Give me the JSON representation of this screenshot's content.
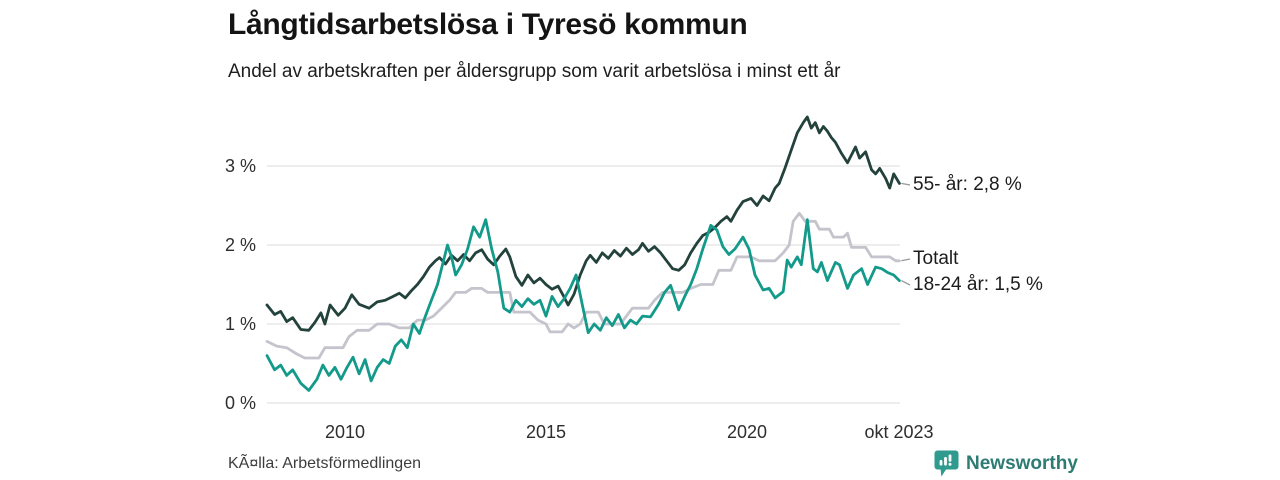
{
  "chart_data": {
    "type": "line",
    "title": "Långtidsarbetslösa i Tyresö kommun",
    "subtitle": "Andel av arbetskraften per åldersgrupp som varit arbetslösa i minst ett år",
    "x_axis": {
      "range": [
        2008.0,
        2023.83
      ],
      "grid": false,
      "ticks": [
        {
          "label": "2010",
          "value": 2010
        },
        {
          "label": "2015",
          "value": 2015
        },
        {
          "label": "2020",
          "value": 2020
        },
        {
          "label": "okt 2023",
          "value": 2023.79
        }
      ]
    },
    "y_axis": {
      "unit": "%",
      "range": [
        0,
        3.65
      ],
      "grid": true,
      "ticks": [
        {
          "label": "0 %",
          "value": 0
        },
        {
          "label": "1 %",
          "value": 1
        },
        {
          "label": "2 %",
          "value": 2
        },
        {
          "label": "3 %",
          "value": 3
        }
      ]
    },
    "legend_position": "end-of-line labels at right",
    "series": [
      {
        "name": "55- år",
        "end_label": "55- år: 2,8 %",
        "last_value": "2,8 %",
        "color": "#23423c",
        "points": [
          [
            2008.06,
            1.24
          ],
          [
            2008.25,
            1.12
          ],
          [
            2008.4,
            1.16
          ],
          [
            2008.55,
            1.03
          ],
          [
            2008.7,
            1.08
          ],
          [
            2008.9,
            0.93
          ],
          [
            2009.1,
            0.92
          ],
          [
            2009.25,
            1.02
          ],
          [
            2009.4,
            1.14
          ],
          [
            2009.5,
            1.0
          ],
          [
            2009.63,
            1.24
          ],
          [
            2009.83,
            1.11
          ],
          [
            2010.0,
            1.2
          ],
          [
            2010.17,
            1.37
          ],
          [
            2010.35,
            1.25
          ],
          [
            2010.6,
            1.2
          ],
          [
            2010.8,
            1.28
          ],
          [
            2011.0,
            1.3
          ],
          [
            2011.2,
            1.35
          ],
          [
            2011.35,
            1.39
          ],
          [
            2011.5,
            1.33
          ],
          [
            2011.65,
            1.42
          ],
          [
            2011.8,
            1.5
          ],
          [
            2011.95,
            1.6
          ],
          [
            2012.1,
            1.72
          ],
          [
            2012.25,
            1.8
          ],
          [
            2012.35,
            1.84
          ],
          [
            2012.5,
            1.76
          ],
          [
            2012.65,
            1.87
          ],
          [
            2012.8,
            1.8
          ],
          [
            2012.95,
            1.88
          ],
          [
            2013.1,
            1.8
          ],
          [
            2013.25,
            1.9
          ],
          [
            2013.4,
            1.94
          ],
          [
            2013.55,
            1.82
          ],
          [
            2013.7,
            1.75
          ],
          [
            2013.85,
            1.86
          ],
          [
            2014.0,
            1.95
          ],
          [
            2014.1,
            1.85
          ],
          [
            2014.25,
            1.6
          ],
          [
            2014.4,
            1.49
          ],
          [
            2014.55,
            1.62
          ],
          [
            2014.7,
            1.52
          ],
          [
            2014.85,
            1.58
          ],
          [
            2015.0,
            1.5
          ],
          [
            2015.15,
            1.44
          ],
          [
            2015.3,
            1.48
          ],
          [
            2015.45,
            1.34
          ],
          [
            2015.55,
            1.24
          ],
          [
            2015.7,
            1.38
          ],
          [
            2015.85,
            1.62
          ],
          [
            2016.0,
            1.8
          ],
          [
            2016.1,
            1.87
          ],
          [
            2016.25,
            1.78
          ],
          [
            2016.4,
            1.9
          ],
          [
            2016.55,
            1.83
          ],
          [
            2016.7,
            1.93
          ],
          [
            2016.85,
            1.86
          ],
          [
            2017.0,
            1.96
          ],
          [
            2017.15,
            1.88
          ],
          [
            2017.3,
            1.94
          ],
          [
            2017.4,
            2.02
          ],
          [
            2017.55,
            1.92
          ],
          [
            2017.7,
            1.98
          ],
          [
            2017.85,
            1.9
          ],
          [
            2018.0,
            1.8
          ],
          [
            2018.15,
            1.7
          ],
          [
            2018.3,
            1.68
          ],
          [
            2018.45,
            1.75
          ],
          [
            2018.6,
            1.9
          ],
          [
            2018.75,
            2.02
          ],
          [
            2018.9,
            2.12
          ],
          [
            2019.05,
            2.16
          ],
          [
            2019.2,
            2.22
          ],
          [
            2019.35,
            2.3
          ],
          [
            2019.5,
            2.36
          ],
          [
            2019.6,
            2.3
          ],
          [
            2019.75,
            2.44
          ],
          [
            2019.9,
            2.55
          ],
          [
            2020.1,
            2.59
          ],
          [
            2020.25,
            2.5
          ],
          [
            2020.4,
            2.62
          ],
          [
            2020.55,
            2.56
          ],
          [
            2020.7,
            2.72
          ],
          [
            2020.8,
            2.78
          ],
          [
            2020.95,
            2.98
          ],
          [
            2021.1,
            3.2
          ],
          [
            2021.25,
            3.42
          ],
          [
            2021.4,
            3.55
          ],
          [
            2021.5,
            3.62
          ],
          [
            2021.6,
            3.48
          ],
          [
            2021.7,
            3.55
          ],
          [
            2021.8,
            3.42
          ],
          [
            2021.9,
            3.5
          ],
          [
            2022.0,
            3.44
          ],
          [
            2022.1,
            3.36
          ],
          [
            2022.2,
            3.3
          ],
          [
            2022.35,
            3.16
          ],
          [
            2022.5,
            3.04
          ],
          [
            2022.6,
            3.14
          ],
          [
            2022.7,
            3.24
          ],
          [
            2022.8,
            3.1
          ],
          [
            2022.95,
            3.18
          ],
          [
            2023.1,
            2.95
          ],
          [
            2023.2,
            2.9
          ],
          [
            2023.3,
            2.97
          ],
          [
            2023.45,
            2.84
          ],
          [
            2023.55,
            2.72
          ],
          [
            2023.65,
            2.9
          ],
          [
            2023.79,
            2.78
          ]
        ]
      },
      {
        "name": "Totalt",
        "end_label": "Totalt",
        "last_value": "1,8 %",
        "color": "#c5c3cc",
        "points": [
          [
            2008.06,
            0.78
          ],
          [
            2008.3,
            0.72
          ],
          [
            2008.55,
            0.7
          ],
          [
            2008.8,
            0.62
          ],
          [
            2009.0,
            0.57
          ],
          [
            2009.35,
            0.57
          ],
          [
            2009.5,
            0.7
          ],
          [
            2009.95,
            0.7
          ],
          [
            2010.1,
            0.84
          ],
          [
            2010.3,
            0.92
          ],
          [
            2010.6,
            0.92
          ],
          [
            2010.8,
            1.0
          ],
          [
            2011.1,
            1.0
          ],
          [
            2011.35,
            0.95
          ],
          [
            2011.6,
            0.95
          ],
          [
            2011.8,
            1.05
          ],
          [
            2012.0,
            1.05
          ],
          [
            2012.2,
            1.1
          ],
          [
            2012.4,
            1.2
          ],
          [
            2012.6,
            1.3
          ],
          [
            2012.75,
            1.4
          ],
          [
            2013.0,
            1.4
          ],
          [
            2013.15,
            1.45
          ],
          [
            2013.4,
            1.45
          ],
          [
            2013.55,
            1.4
          ],
          [
            2014.1,
            1.4
          ],
          [
            2014.2,
            1.15
          ],
          [
            2014.6,
            1.15
          ],
          [
            2014.8,
            1.05
          ],
          [
            2015.0,
            1.0
          ],
          [
            2015.1,
            0.9
          ],
          [
            2015.4,
            0.9
          ],
          [
            2015.55,
            1.0
          ],
          [
            2015.7,
            0.95
          ],
          [
            2015.85,
            1.0
          ],
          [
            2016.0,
            1.15
          ],
          [
            2016.3,
            1.15
          ],
          [
            2016.45,
            1.0
          ],
          [
            2016.85,
            1.0
          ],
          [
            2017.0,
            1.1
          ],
          [
            2017.15,
            1.2
          ],
          [
            2017.55,
            1.2
          ],
          [
            2017.7,
            1.3
          ],
          [
            2017.9,
            1.4
          ],
          [
            2018.4,
            1.4
          ],
          [
            2018.6,
            1.45
          ],
          [
            2018.85,
            1.5
          ],
          [
            2019.15,
            1.5
          ],
          [
            2019.3,
            1.68
          ],
          [
            2019.6,
            1.68
          ],
          [
            2019.75,
            1.85
          ],
          [
            2020.1,
            1.85
          ],
          [
            2020.3,
            1.8
          ],
          [
            2020.7,
            1.8
          ],
          [
            2020.9,
            1.9
          ],
          [
            2021.05,
            2.0
          ],
          [
            2021.15,
            2.3
          ],
          [
            2021.3,
            2.4
          ],
          [
            2021.45,
            2.3
          ],
          [
            2021.7,
            2.3
          ],
          [
            2021.8,
            2.2
          ],
          [
            2022.05,
            2.2
          ],
          [
            2022.15,
            2.1
          ],
          [
            2022.4,
            2.1
          ],
          [
            2022.5,
            2.15
          ],
          [
            2022.6,
            1.97
          ],
          [
            2022.95,
            1.97
          ],
          [
            2023.1,
            1.85
          ],
          [
            2023.55,
            1.85
          ],
          [
            2023.7,
            1.8
          ],
          [
            2023.79,
            1.8
          ]
        ]
      },
      {
        "name": "18-24 år",
        "end_label": "18-24 år: 1,5 %",
        "last_value": "1,5 %",
        "color": "#149a8b",
        "points": [
          [
            2008.06,
            0.6
          ],
          [
            2008.25,
            0.42
          ],
          [
            2008.4,
            0.48
          ],
          [
            2008.55,
            0.35
          ],
          [
            2008.7,
            0.42
          ],
          [
            2008.9,
            0.25
          ],
          [
            2009.1,
            0.16
          ],
          [
            2009.3,
            0.3
          ],
          [
            2009.45,
            0.48
          ],
          [
            2009.6,
            0.35
          ],
          [
            2009.75,
            0.45
          ],
          [
            2009.9,
            0.3
          ],
          [
            2010.05,
            0.45
          ],
          [
            2010.2,
            0.58
          ],
          [
            2010.35,
            0.37
          ],
          [
            2010.5,
            0.55
          ],
          [
            2010.65,
            0.28
          ],
          [
            2010.8,
            0.45
          ],
          [
            2010.95,
            0.55
          ],
          [
            2011.1,
            0.5
          ],
          [
            2011.25,
            0.72
          ],
          [
            2011.4,
            0.8
          ],
          [
            2011.55,
            0.7
          ],
          [
            2011.7,
            1.0
          ],
          [
            2011.85,
            0.88
          ],
          [
            2012.0,
            1.1
          ],
          [
            2012.15,
            1.3
          ],
          [
            2012.3,
            1.5
          ],
          [
            2012.45,
            1.8
          ],
          [
            2012.55,
            2.0
          ],
          [
            2012.65,
            1.85
          ],
          [
            2012.75,
            1.62
          ],
          [
            2012.9,
            1.75
          ],
          [
            2013.05,
            1.95
          ],
          [
            2013.2,
            2.23
          ],
          [
            2013.35,
            2.1
          ],
          [
            2013.5,
            2.32
          ],
          [
            2013.65,
            1.95
          ],
          [
            2013.8,
            1.66
          ],
          [
            2013.95,
            1.2
          ],
          [
            2014.1,
            1.15
          ],
          [
            2014.25,
            1.3
          ],
          [
            2014.4,
            1.22
          ],
          [
            2014.55,
            1.32
          ],
          [
            2014.7,
            1.25
          ],
          [
            2014.85,
            1.3
          ],
          [
            2015.0,
            1.1
          ],
          [
            2015.15,
            1.35
          ],
          [
            2015.3,
            1.22
          ],
          [
            2015.45,
            1.32
          ],
          [
            2015.6,
            1.45
          ],
          [
            2015.75,
            1.62
          ],
          [
            2015.9,
            1.25
          ],
          [
            2016.05,
            0.89
          ],
          [
            2016.2,
            1.0
          ],
          [
            2016.35,
            0.92
          ],
          [
            2016.5,
            1.08
          ],
          [
            2016.65,
            0.98
          ],
          [
            2016.8,
            1.12
          ],
          [
            2016.95,
            0.95
          ],
          [
            2017.1,
            1.05
          ],
          [
            2017.25,
            1.0
          ],
          [
            2017.4,
            1.1
          ],
          [
            2017.6,
            1.09
          ],
          [
            2017.8,
            1.25
          ],
          [
            2017.95,
            1.4
          ],
          [
            2018.1,
            1.49
          ],
          [
            2018.3,
            1.18
          ],
          [
            2018.45,
            1.35
          ],
          [
            2018.6,
            1.5
          ],
          [
            2018.75,
            1.7
          ],
          [
            2018.9,
            1.95
          ],
          [
            2019.1,
            2.25
          ],
          [
            2019.25,
            2.19
          ],
          [
            2019.4,
            1.98
          ],
          [
            2019.55,
            1.88
          ],
          [
            2019.7,
            1.95
          ],
          [
            2019.9,
            2.1
          ],
          [
            2020.05,
            1.95
          ],
          [
            2020.2,
            1.62
          ],
          [
            2020.4,
            1.43
          ],
          [
            2020.55,
            1.45
          ],
          [
            2020.7,
            1.33
          ],
          [
            2020.9,
            1.41
          ],
          [
            2021.0,
            1.81
          ],
          [
            2021.1,
            1.72
          ],
          [
            2021.25,
            1.85
          ],
          [
            2021.35,
            1.75
          ],
          [
            2021.5,
            2.32
          ],
          [
            2021.65,
            1.7
          ],
          [
            2021.75,
            1.66
          ],
          [
            2021.85,
            1.78
          ],
          [
            2022.0,
            1.55
          ],
          [
            2022.2,
            1.78
          ],
          [
            2022.3,
            1.75
          ],
          [
            2022.5,
            1.45
          ],
          [
            2022.65,
            1.62
          ],
          [
            2022.85,
            1.7
          ],
          [
            2023.0,
            1.5
          ],
          [
            2023.2,
            1.72
          ],
          [
            2023.35,
            1.7
          ],
          [
            2023.5,
            1.65
          ],
          [
            2023.65,
            1.62
          ],
          [
            2023.79,
            1.55
          ]
        ]
      }
    ]
  },
  "footer": {
    "source": "KÃ¤lla: Arbetsförmedlingen",
    "brand": "Newsworthy",
    "brand_color": "#2d7b73",
    "brand_icon": "bar-chart-speech-bubble"
  },
  "colors": {
    "grid": "#e2e2e2",
    "connector": "#999999",
    "logo_bubble": "#2f9a8e"
  }
}
